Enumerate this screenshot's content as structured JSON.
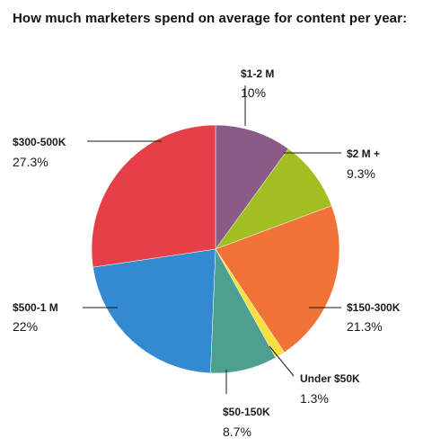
{
  "title": "How much marketers spend on average for content per year:",
  "chart_data": {
    "type": "pie",
    "title": "How much marketers spend on average for content per year:",
    "unit": "%",
    "slices": [
      {
        "label": "$1-2 M",
        "value": 10,
        "value_label": "10%",
        "color": "#8b5b87"
      },
      {
        "label": "$2 M +",
        "value": 9.3,
        "value_label": "9.3%",
        "color": "#a2bf21"
      },
      {
        "label": "$150-300K",
        "value": 21.3,
        "value_label": "21.3%",
        "color": "#f07236"
      },
      {
        "label": "Under $50K",
        "value": 1.3,
        "value_label": "1.3%",
        "color": "#f9e040"
      },
      {
        "label": "$50-150K",
        "value": 8.7,
        "value_label": "8.7%",
        "color": "#4d9f8f"
      },
      {
        "label": "$500-1 M",
        "value": 22,
        "value_label": "22%",
        "color": "#338ad0"
      },
      {
        "label": "$300-500K",
        "value": 27.3,
        "value_label": "27.3%",
        "color": "#e53f47"
      }
    ]
  }
}
